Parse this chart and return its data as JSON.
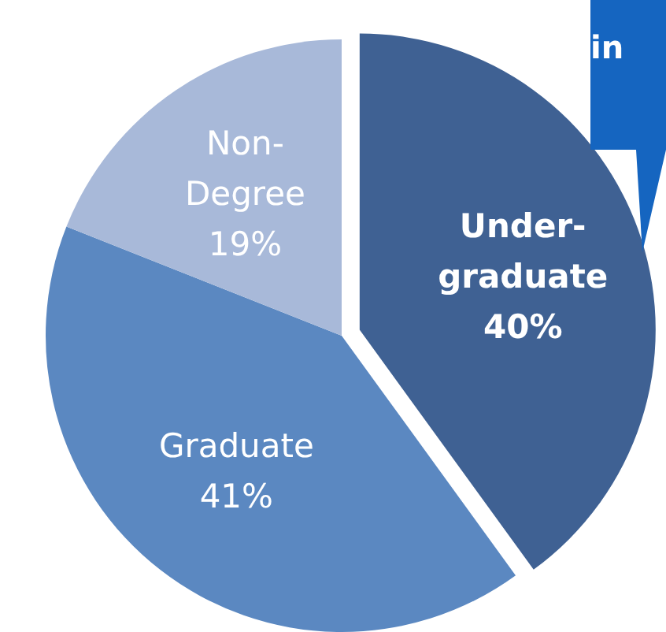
{
  "chart_data": {
    "type": "pie",
    "categories": [
      "Under-graduate",
      "Graduate",
      "Non-Degree"
    ],
    "values": [
      40,
      41,
      19
    ],
    "value_labels": [
      "40%",
      "41%",
      "19%"
    ],
    "colors": [
      "#3f6193",
      "#5b88c1",
      "#a8b9d9"
    ],
    "annotations": [
      "in"
    ]
  }
}
